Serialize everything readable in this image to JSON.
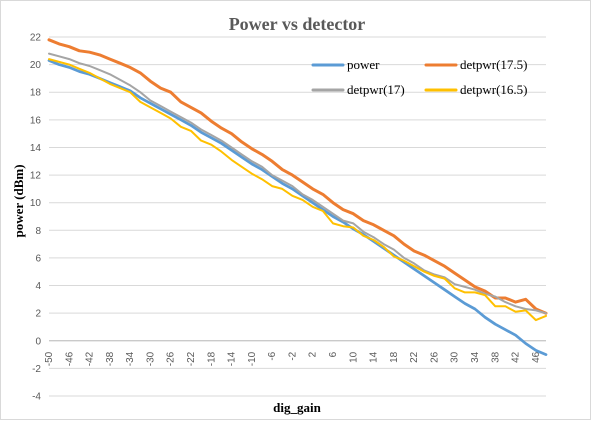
{
  "chart_data": {
    "type": "line",
    "title": "Power vs detector",
    "xlabel": "dig_gain",
    "ylabel": "power (dBm)",
    "ylim": [
      -4,
      22
    ],
    "yticks": [
      -4,
      -2,
      0,
      2,
      4,
      6,
      8,
      10,
      12,
      14,
      16,
      18,
      20,
      22
    ],
    "grid": true,
    "legend": "top-right",
    "x": [
      -50,
      -48,
      -46,
      -44,
      -42,
      -40,
      -38,
      -36,
      -34,
      -32,
      -30,
      -28,
      -26,
      -24,
      -22,
      -20,
      -18,
      -16,
      -14,
      -12,
      -10,
      -8,
      -6,
      -4,
      -2,
      0,
      2,
      4,
      6,
      8,
      10,
      12,
      14,
      16,
      18,
      20,
      22,
      24,
      26,
      28,
      30,
      32,
      34,
      36,
      38,
      40,
      42,
      44,
      46,
      48
    ],
    "xtick_labels": [
      "-50",
      "-46",
      "-42",
      "-38",
      "-34",
      "-30",
      "-26",
      "-22",
      "-18",
      "-14",
      "-10",
      "-6",
      "-2",
      "2",
      "6",
      "10",
      "14",
      "18",
      "22",
      "26",
      "30",
      "34",
      "38",
      "42",
      "46"
    ],
    "series": [
      {
        "name": "power",
        "color": "#5B9BD5",
        "values": [
          20.3,
          20.0,
          19.8,
          19.5,
          19.3,
          19.0,
          18.7,
          18.4,
          18.1,
          17.6,
          17.2,
          16.8,
          16.4,
          16.0,
          15.6,
          15.1,
          14.7,
          14.3,
          13.8,
          13.3,
          12.8,
          12.4,
          11.9,
          11.4,
          11.0,
          10.5,
          10.0,
          9.5,
          9.0,
          8.6,
          8.1,
          7.7,
          7.2,
          6.7,
          6.2,
          5.7,
          5.2,
          4.7,
          4.2,
          3.7,
          3.2,
          2.7,
          2.3,
          1.7,
          1.2,
          0.8,
          0.4,
          -0.2,
          -0.7,
          -1.0
        ]
      },
      {
        "name": "detpwr(17.5)",
        "color": "#ED7D31",
        "values": [
          21.8,
          21.5,
          21.3,
          21.0,
          20.9,
          20.7,
          20.4,
          20.1,
          19.8,
          19.4,
          18.8,
          18.3,
          18.0,
          17.3,
          16.9,
          16.5,
          15.9,
          15.4,
          15.0,
          14.4,
          13.9,
          13.5,
          13.0,
          12.4,
          12.0,
          11.5,
          11.0,
          10.6,
          10.0,
          9.5,
          9.2,
          8.7,
          8.4,
          8.0,
          7.6,
          7.0,
          6.5,
          6.2,
          5.8,
          5.4,
          4.9,
          4.4,
          3.9,
          3.6,
          3.1,
          3.1,
          2.8,
          3.0,
          2.3,
          2.0
        ]
      },
      {
        "name": "detpwr(17)",
        "color": "#A5A5A5",
        "values": [
          20.8,
          20.6,
          20.4,
          20.1,
          19.9,
          19.6,
          19.3,
          18.9,
          18.5,
          18.0,
          17.4,
          17.0,
          16.6,
          16.2,
          15.8,
          15.3,
          14.9,
          14.5,
          14.0,
          13.5,
          13.0,
          12.6,
          12.0,
          11.6,
          11.2,
          10.6,
          10.2,
          9.7,
          9.2,
          8.7,
          8.5,
          7.9,
          7.5,
          7.0,
          6.6,
          6.0,
          5.6,
          5.1,
          4.8,
          4.6,
          4.1,
          3.9,
          3.7,
          3.4,
          3.2,
          2.8,
          2.5,
          2.3,
          2.2,
          2.0
        ]
      },
      {
        "name": "detpwr(16.5)",
        "color": "#FFC000",
        "values": [
          20.4,
          20.2,
          20.0,
          19.7,
          19.4,
          19.0,
          18.6,
          18.3,
          18.0,
          17.3,
          16.9,
          16.5,
          16.1,
          15.5,
          15.2,
          14.5,
          14.2,
          13.7,
          13.1,
          12.6,
          12.1,
          11.7,
          11.2,
          11.0,
          10.5,
          10.2,
          9.7,
          9.4,
          8.5,
          8.3,
          8.2,
          7.6,
          7.3,
          6.8,
          6.1,
          5.8,
          5.4,
          5.0,
          4.7,
          4.5,
          3.8,
          3.5,
          3.5,
          3.3,
          2.5,
          2.5,
          2.1,
          2.2,
          1.5,
          1.8
        ]
      }
    ]
  }
}
